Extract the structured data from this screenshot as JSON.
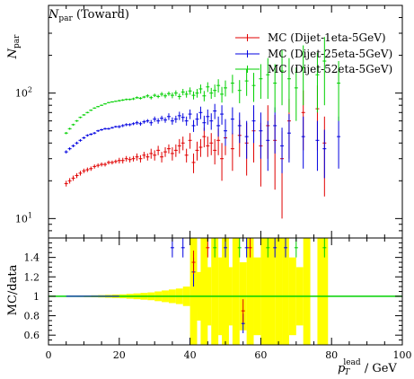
{
  "chart_data": [
    {
      "type": "scatter",
      "panel": "main",
      "title": "N_par (Toward)",
      "title_main": "N",
      "title_sub": "par",
      "title_rest": " (Toward)",
      "ylabel_main": "N",
      "ylabel_sub": "par",
      "y_scale": "log",
      "ylim": [
        7,
        500
      ],
      "xlim": [
        0,
        100
      ],
      "y_ticks": [
        {
          "label_base": "10",
          "label_exp": "1"
        },
        {
          "label_base": "10",
          "label_exp": "2"
        }
      ],
      "legend_position": "top-right",
      "series": [
        {
          "name": "MC (Dijet-1eta-5GeV)",
          "color": "#e00000",
          "points": [
            [
              5,
              19,
              1
            ],
            [
              6,
              20,
              1
            ],
            [
              7,
              21,
              1
            ],
            [
              8,
              22,
              1
            ],
            [
              9,
              23,
              1
            ],
            [
              10,
              24,
              1
            ],
            [
              11,
              24.5,
              1
            ],
            [
              12,
              25,
              1
            ],
            [
              13,
              26,
              1
            ],
            [
              14,
              26.5,
              1
            ],
            [
              15,
              27,
              1
            ],
            [
              16,
              27,
              1
            ],
            [
              17,
              28,
              1
            ],
            [
              18,
              28,
              1
            ],
            [
              19,
              28.5,
              1
            ],
            [
              20,
              29,
              1.5
            ],
            [
              21,
              29,
              1.5
            ],
            [
              22,
              30,
              1.5
            ],
            [
              23,
              29.5,
              1.5
            ],
            [
              24,
              30,
              1.5
            ],
            [
              25,
              31,
              2
            ],
            [
              26,
              30,
              2
            ],
            [
              27,
              32,
              2
            ],
            [
              28,
              31,
              2
            ],
            [
              29,
              33,
              3
            ],
            [
              30,
              32,
              3
            ],
            [
              31,
              35,
              3
            ],
            [
              32,
              31,
              3
            ],
            [
              33,
              34,
              3
            ],
            [
              34,
              36,
              3
            ],
            [
              35,
              33,
              4
            ],
            [
              36,
              35,
              4
            ],
            [
              37,
              38,
              5
            ],
            [
              38,
              40,
              5
            ],
            [
              39,
              32,
              4
            ],
            [
              40,
              42,
              6
            ],
            [
              41,
              28,
              5
            ],
            [
              42,
              35,
              6
            ],
            [
              43,
              37,
              6
            ],
            [
              44,
              45,
              8
            ],
            [
              45,
              38,
              7
            ],
            [
              46,
              40,
              8
            ],
            [
              47,
              35,
              8
            ],
            [
              48,
              42,
              10
            ],
            [
              49,
              30,
              10
            ],
            [
              50,
              44,
              12
            ],
            [
              52,
              36,
              12
            ],
            [
              54,
              46,
              15
            ],
            [
              56,
              40,
              18
            ],
            [
              58,
              50,
              22
            ],
            [
              60,
              38,
              20
            ],
            [
              62,
              55,
              25
            ],
            [
              64,
              42,
              25
            ],
            [
              66,
              30,
              20
            ],
            [
              68,
              60,
              30
            ],
            [
              72,
              70,
              35
            ],
            [
              76,
              75,
              40
            ],
            [
              78,
              40,
              25
            ]
          ]
        },
        {
          "name": "MC (Dijet-25eta-5GeV)",
          "color": "#0000e0",
          "points": [
            [
              5,
              34,
              1
            ],
            [
              6,
              36,
              1
            ],
            [
              7,
              38,
              1
            ],
            [
              8,
              40,
              1
            ],
            [
              9,
              42,
              1
            ],
            [
              10,
              44,
              1
            ],
            [
              11,
              46,
              1
            ],
            [
              12,
              47,
              1
            ],
            [
              13,
              48,
              1
            ],
            [
              14,
              50,
              1
            ],
            [
              15,
              51,
              1
            ],
            [
              16,
              52,
              1
            ],
            [
              17,
              52,
              1
            ],
            [
              18,
              53,
              1
            ],
            [
              19,
              54,
              1
            ],
            [
              20,
              54,
              1.5
            ],
            [
              21,
              55,
              1.5
            ],
            [
              22,
              56,
              1.5
            ],
            [
              23,
              56,
              1.5
            ],
            [
              24,
              57,
              1.5
            ],
            [
              25,
              58,
              2
            ],
            [
              26,
              57,
              2
            ],
            [
              27,
              59,
              2
            ],
            [
              28,
              60,
              2
            ],
            [
              29,
              58,
              3
            ],
            [
              30,
              62,
              3
            ],
            [
              31,
              60,
              3
            ],
            [
              32,
              63,
              3
            ],
            [
              33,
              61,
              3
            ],
            [
              34,
              65,
              4
            ],
            [
              35,
              60,
              4
            ],
            [
              36,
              62,
              4
            ],
            [
              37,
              66,
              5
            ],
            [
              38,
              64,
              5
            ],
            [
              39,
              60,
              5
            ],
            [
              40,
              68,
              6
            ],
            [
              41,
              55,
              6
            ],
            [
              42,
              62,
              7
            ],
            [
              43,
              70,
              8
            ],
            [
              44,
              58,
              8
            ],
            [
              45,
              65,
              9
            ],
            [
              46,
              60,
              9
            ],
            [
              47,
              72,
              10
            ],
            [
              48,
              55,
              10
            ],
            [
              49,
              68,
              12
            ],
            [
              50,
              50,
              12
            ],
            [
              52,
              62,
              15
            ],
            [
              54,
              55,
              15
            ],
            [
              56,
              45,
              15
            ],
            [
              58,
              60,
              20
            ],
            [
              60,
              50,
              20
            ],
            [
              62,
              42,
              18
            ],
            [
              64,
              55,
              22
            ],
            [
              66,
              38,
              15
            ],
            [
              68,
              48,
              20
            ],
            [
              72,
              45,
              20
            ],
            [
              76,
              42,
              18
            ],
            [
              78,
              36,
              15
            ],
            [
              82,
              45,
              20
            ]
          ]
        },
        {
          "name": "MC (Dijet-52eta-5GeV)",
          "color": "#00d000",
          "points": [
            [
              5,
              48,
              1
            ],
            [
              6,
              52,
              1
            ],
            [
              7,
              56,
              1
            ],
            [
              8,
              60,
              1
            ],
            [
              9,
              64,
              1
            ],
            [
              10,
              67,
              1
            ],
            [
              11,
              70,
              1
            ],
            [
              12,
              73,
              1
            ],
            [
              13,
              76,
              1
            ],
            [
              14,
              78,
              1
            ],
            [
              15,
              80,
              1
            ],
            [
              16,
              82,
              1
            ],
            [
              17,
              84,
              1
            ],
            [
              18,
              85,
              1
            ],
            [
              19,
              86,
              1
            ],
            [
              20,
              87,
              1.5
            ],
            [
              21,
              88,
              1.5
            ],
            [
              22,
              89,
              1.5
            ],
            [
              23,
              89,
              1.5
            ],
            [
              24,
              90,
              2
            ],
            [
              25,
              92,
              2
            ],
            [
              26,
              91,
              2
            ],
            [
              27,
              93,
              2
            ],
            [
              28,
              95,
              3
            ],
            [
              29,
              92,
              3
            ],
            [
              30,
              96,
              3
            ],
            [
              31,
              94,
              3
            ],
            [
              32,
              98,
              4
            ],
            [
              33,
              95,
              4
            ],
            [
              34,
              99,
              4
            ],
            [
              35,
              96,
              5
            ],
            [
              36,
              100,
              5
            ],
            [
              37,
              94,
              5
            ],
            [
              38,
              102,
              6
            ],
            [
              39,
              98,
              6
            ],
            [
              40,
              104,
              7
            ],
            [
              41,
              96,
              7
            ],
            [
              42,
              100,
              8
            ],
            [
              43,
              108,
              9
            ],
            [
              44,
              95,
              9
            ],
            [
              45,
              112,
              10
            ],
            [
              46,
              100,
              10
            ],
            [
              47,
              105,
              12
            ],
            [
              48,
              115,
              14
            ],
            [
              49,
              98,
              14
            ],
            [
              50,
              110,
              16
            ],
            [
              52,
              120,
              20
            ],
            [
              54,
              105,
              22
            ],
            [
              56,
              125,
              30
            ],
            [
              58,
              115,
              30
            ],
            [
              60,
              130,
              40
            ],
            [
              62,
              140,
              50
            ],
            [
              64,
              120,
              50
            ],
            [
              66,
              150,
              70
            ],
            [
              68,
              130,
              60
            ],
            [
              70,
              110,
              50
            ],
            [
              72,
              160,
              80
            ],
            [
              76,
              140,
              70
            ],
            [
              78,
              180,
              100
            ],
            [
              82,
              120,
              60
            ]
          ]
        }
      ]
    },
    {
      "type": "scatter",
      "panel": "ratio",
      "ylabel": "MC/data",
      "xlabel_main": "p",
      "xlabel_sub": "T",
      "xlabel_sup": "lead",
      "xlabel_rest": " / GeV",
      "xlim": [
        0,
        100
      ],
      "ylim": [
        0.5,
        1.6
      ],
      "x_ticks": [
        0,
        20,
        40,
        60,
        80,
        100
      ],
      "y_ticks": [
        "0.6",
        "0.8",
        "1",
        "1.2",
        "1.4"
      ],
      "reference_line": 1,
      "band_color": "#ffff00",
      "uncertainty_band": [
        [
          5,
          0.004
        ],
        [
          7,
          0.005
        ],
        [
          9,
          0.006
        ],
        [
          11,
          0.008
        ],
        [
          13,
          0.01
        ],
        [
          15,
          0.012
        ],
        [
          17,
          0.015
        ],
        [
          19,
          0.018
        ],
        [
          21,
          0.02
        ],
        [
          23,
          0.025
        ],
        [
          25,
          0.03
        ],
        [
          27,
          0.035
        ],
        [
          29,
          0.04
        ],
        [
          31,
          0.05
        ],
        [
          33,
          0.06
        ],
        [
          35,
          0.07
        ],
        [
          37,
          0.08
        ],
        [
          39,
          0.1
        ],
        [
          41,
          0.6
        ],
        [
          42,
          0.15
        ],
        [
          43,
          0.25
        ],
        [
          44,
          0.6
        ],
        [
          45,
          0.3
        ],
        [
          47,
          0.6
        ],
        [
          49,
          0.4
        ],
        [
          50,
          0.6
        ],
        [
          51,
          0.3
        ],
        [
          53,
          0.6
        ],
        [
          55,
          0.35
        ],
        [
          57,
          0.6
        ],
        [
          59,
          0.4
        ],
        [
          61,
          0.6
        ],
        [
          62,
          0.6
        ],
        [
          63,
          0.6
        ],
        [
          65,
          0.6
        ],
        [
          67,
          0.6
        ],
        [
          69,
          0.4
        ],
        [
          71,
          0.3
        ],
        [
          73,
          0.6
        ],
        [
          77,
          0.6
        ],
        [
          78,
          0.6
        ]
      ],
      "series": [
        {
          "color": "#0000e0",
          "points": [
            [
              35,
              1.5,
              0.1
            ],
            [
              38,
              1.5,
              0.1
            ],
            [
              41,
              1.25,
              0.15
            ],
            [
              50,
              1.5,
              0.1
            ],
            [
              55,
              0.72,
              0.1
            ],
            [
              56,
              1.5,
              0.1
            ],
            [
              64,
              1.5,
              0.1
            ],
            [
              67,
              1.5,
              0.1
            ]
          ]
        },
        {
          "color": "#e00000",
          "points": [
            [
              41,
              1.35,
              0.12
            ],
            [
              45,
              1.5,
              0.1
            ],
            [
              55,
              0.85,
              0.12
            ],
            [
              57,
              1.5,
              0.1
            ]
          ]
        },
        {
          "color": "#00d000",
          "points": [
            [
              47,
              1.5,
              0.1
            ],
            [
              54,
              1.5,
              0.1
            ],
            [
              62,
              1.5,
              0.1
            ],
            [
              70,
              1.5,
              0.1
            ],
            [
              78,
              1.5,
              0.1
            ]
          ]
        }
      ]
    }
  ]
}
